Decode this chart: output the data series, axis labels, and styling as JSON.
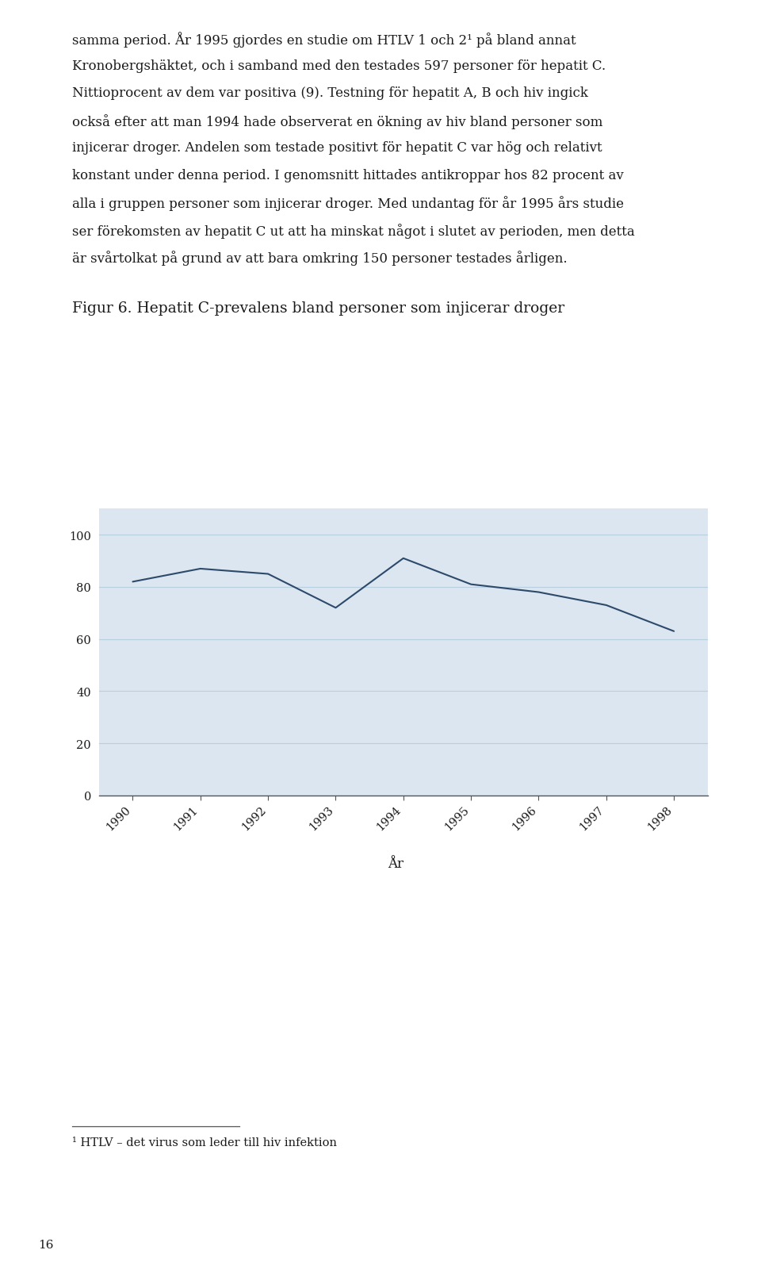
{
  "title": "Figur 6. Hepatit C-prevalens bland personer som injicerar droger",
  "xlabel": "År",
  "ylabel": "",
  "years": [
    1990,
    1991,
    1992,
    1993,
    1994,
    1995,
    1996,
    1997,
    1998
  ],
  "values": [
    82,
    87,
    85,
    72,
    91,
    81,
    78,
    73,
    63
  ],
  "ylim": [
    0,
    110
  ],
  "yticks": [
    0,
    20,
    40,
    60,
    80,
    100
  ],
  "line_color": "#2d4a6b",
  "bg_color": "#dce6f0",
  "page_bg_color": "#ffffff",
  "grid_color": "#b8cfe0",
  "body_text_lines": [
    "samma period. År 1995 gjordes en studie om HTLV 1 och 2¹ på bland annat",
    "Kronobergshäktet, och i samband med den testades 597 personer för hepatit C.",
    "Nittioprocent av dem var positiva (9). Testning för hepatit A, B och hiv ingick",
    "också efter att man 1994 hade observerat en ökning av hiv bland personer som",
    "injicerar droger. Andelen som testade positivt för hepatit C var hög och relativt",
    "konstant under denna period. I genomsnitt hittades antikroppar hos 82 procent av",
    "alla i gruppen personer som injicerar droger. Med undantag för år 1995 års studie",
    "ser förekomsten av hepatit C ut att ha minskat något i slutet av perioden, men detta",
    "är svårtolkat på grund av att bara omkring 150 personer testades årligen."
  ],
  "footnote": "¹ HTLV – det virus som leder till hiv infektion",
  "page_number": "16",
  "text_fontsize": 12.0,
  "title_fontsize": 13.5,
  "footnote_fontsize": 10.5
}
